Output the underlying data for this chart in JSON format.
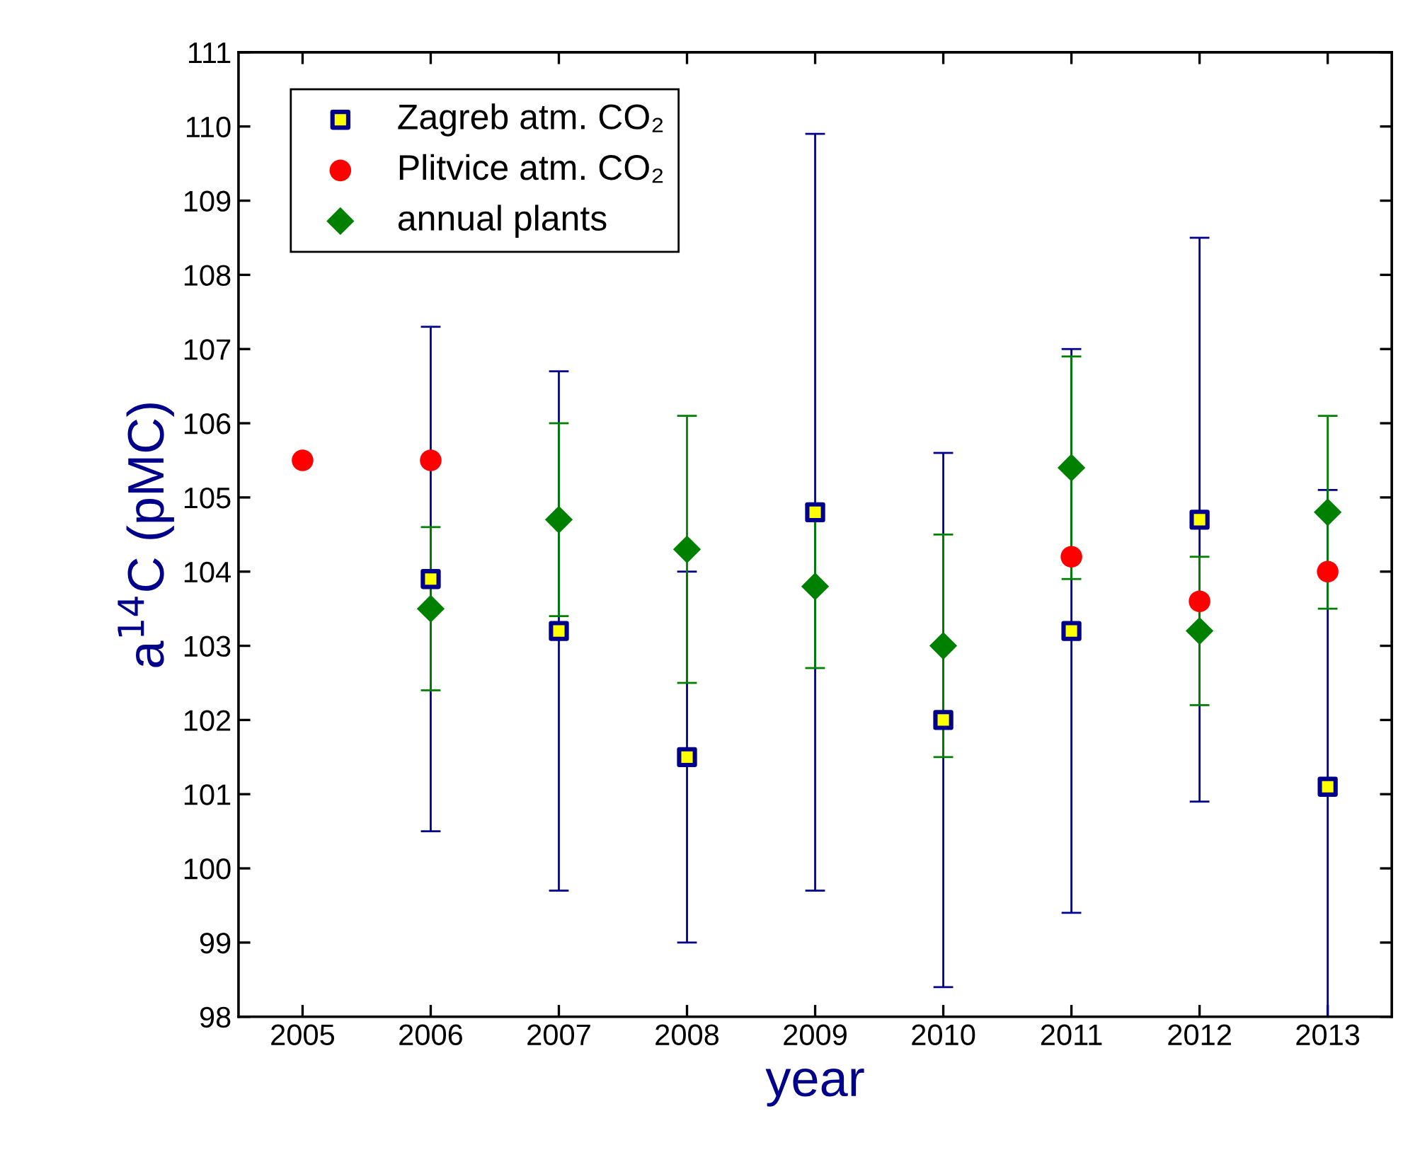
{
  "chart_data": {
    "type": "scatter",
    "xlabel": "year",
    "ylabel": "a$^{14}$C (pMC)",
    "xlim": [
      2004.5,
      2013.5
    ],
    "xticks": [
      2005,
      2006,
      2007,
      2008,
      2009,
      2010,
      2011,
      2012,
      2013
    ],
    "ylim": [
      98,
      111
    ],
    "yticks": [
      98,
      99,
      100,
      101,
      102,
      103,
      104,
      105,
      106,
      107,
      108,
      109,
      110,
      111
    ],
    "grid": false,
    "legend": "top left",
    "series": [
      {
        "name": "Zagreb atm. CO₂",
        "color": "#00008b",
        "marker": "square",
        "x": [
          2006,
          2007,
          2008,
          2009,
          2010,
          2011,
          2012,
          2013
        ],
        "values": [
          103.9,
          103.2,
          101.5,
          104.8,
          102.0,
          103.2,
          104.7,
          101.1
        ],
        "errors": [
          [
            100.5,
            107.3
          ],
          [
            99.7,
            106.7
          ],
          [
            99.0,
            104.0
          ],
          [
            99.7,
            109.9
          ],
          [
            98.4,
            105.6
          ],
          [
            99.4,
            107.0
          ],
          [
            100.9,
            108.5
          ],
          [
            98.0,
            105.1
          ]
        ]
      },
      {
        "name": "Plitvice atm. CO₂",
        "color": "#ff0000",
        "marker": "circle",
        "x": [
          2005,
          2006,
          2011,
          2012,
          2013
        ],
        "values": [
          105.5,
          105.5,
          104.2,
          103.6,
          104.0
        ]
      },
      {
        "name": "annual plants",
        "color": "#008000",
        "marker": "diamond",
        "x": [
          2006,
          2007,
          2008,
          2009,
          2010,
          2011,
          2012,
          2013
        ],
        "values": [
          103.5,
          104.7,
          104.3,
          103.8,
          103.0,
          105.4,
          103.2,
          104.8
        ],
        "errors": [
          [
            102.4,
            104.6
          ],
          [
            103.4,
            106.0
          ],
          [
            102.5,
            106.1
          ],
          [
            102.7,
            104.9
          ],
          [
            101.5,
            104.5
          ],
          [
            103.9,
            106.9
          ],
          [
            102.2,
            104.2
          ],
          [
            103.5,
            106.1
          ]
        ]
      }
    ]
  }
}
